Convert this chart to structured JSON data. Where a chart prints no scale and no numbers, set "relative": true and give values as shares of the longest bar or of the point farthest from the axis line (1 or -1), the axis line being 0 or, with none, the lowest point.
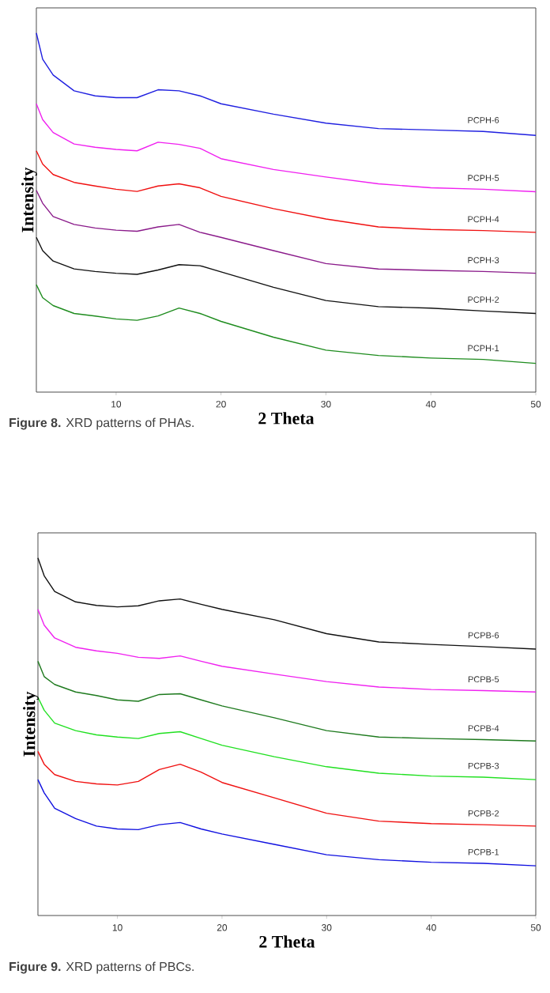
{
  "chart_data": [
    {
      "type": "line",
      "relative": true,
      "xlabel": "2 Theta",
      "ylabel": "Intensity",
      "xlim": [
        2.4,
        50
      ],
      "xticks": [
        10,
        20,
        30,
        40,
        50
      ],
      "x": [
        2.4,
        3,
        4,
        6,
        8,
        10,
        12,
        14,
        16,
        18,
        20,
        25,
        30,
        35,
        40,
        45,
        50
      ],
      "series": [
        {
          "name": "PCPH-6",
          "color": "#1f1fe0",
          "values": [
            1.0,
            0.927,
            0.883,
            0.839,
            0.825,
            0.82,
            0.82,
            0.842,
            0.839,
            0.825,
            0.803,
            0.774,
            0.749,
            0.734,
            0.73,
            0.726,
            0.715
          ]
        },
        {
          "name": "PCPH-5",
          "color": "#f020f0",
          "values": [
            0.803,
            0.759,
            0.723,
            0.691,
            0.682,
            0.676,
            0.672,
            0.696,
            0.69,
            0.679,
            0.65,
            0.62,
            0.599,
            0.58,
            0.569,
            0.565,
            0.558
          ]
        },
        {
          "name": "PCPH-4",
          "color": "#f01010",
          "values": [
            0.672,
            0.635,
            0.606,
            0.584,
            0.574,
            0.565,
            0.559,
            0.574,
            0.58,
            0.569,
            0.545,
            0.511,
            0.482,
            0.46,
            0.453,
            0.45,
            0.445
          ]
        },
        {
          "name": "PCPH-3",
          "color": "#8a1a8a",
          "values": [
            0.562,
            0.526,
            0.489,
            0.467,
            0.457,
            0.451,
            0.448,
            0.46,
            0.467,
            0.445,
            0.431,
            0.394,
            0.358,
            0.343,
            0.339,
            0.336,
            0.331
          ]
        },
        {
          "name": "PCPH-2",
          "color": "#101010",
          "values": [
            0.431,
            0.394,
            0.365,
            0.343,
            0.336,
            0.331,
            0.328,
            0.34,
            0.355,
            0.352,
            0.335,
            0.292,
            0.255,
            0.238,
            0.234,
            0.226,
            0.219
          ]
        },
        {
          "name": "PCPH-1",
          "color": "#1e8c1e",
          "values": [
            0.299,
            0.263,
            0.241,
            0.219,
            0.212,
            0.204,
            0.2,
            0.212,
            0.234,
            0.219,
            0.197,
            0.153,
            0.117,
            0.102,
            0.095,
            0.091,
            0.08
          ]
        }
      ],
      "annotations": [
        "**Figure 8.** XRD patterns of PHAs."
      ]
    },
    {
      "type": "line",
      "relative": true,
      "xlabel": "2 Theta",
      "ylabel": "Intensity",
      "xlim": [
        2.4,
        50
      ],
      "xticks": [
        10,
        20,
        30,
        40,
        50
      ],
      "x": [
        2.4,
        3,
        4,
        6,
        8,
        10,
        12,
        14,
        16,
        18,
        20,
        25,
        30,
        35,
        40,
        45,
        50
      ],
      "series": [
        {
          "name": "PCPB-6",
          "color": "#101010",
          "values": [
            1.0,
            0.95,
            0.906,
            0.877,
            0.867,
            0.863,
            0.866,
            0.88,
            0.885,
            0.87,
            0.856,
            0.827,
            0.788,
            0.765,
            0.758,
            0.752,
            0.745
          ]
        },
        {
          "name": "PCPB-5",
          "color": "#f020f0",
          "values": [
            0.856,
            0.812,
            0.776,
            0.75,
            0.74,
            0.733,
            0.722,
            0.719,
            0.726,
            0.711,
            0.697,
            0.675,
            0.654,
            0.639,
            0.632,
            0.629,
            0.625
          ]
        },
        {
          "name": "PCPB-4",
          "color": "#1e7a1e",
          "values": [
            0.711,
            0.668,
            0.646,
            0.625,
            0.615,
            0.603,
            0.599,
            0.618,
            0.62,
            0.603,
            0.586,
            0.553,
            0.517,
            0.499,
            0.495,
            0.492,
            0.488
          ]
        },
        {
          "name": "PCPB-3",
          "color": "#20e020",
          "values": [
            0.61,
            0.574,
            0.538,
            0.517,
            0.505,
            0.499,
            0.495,
            0.509,
            0.514,
            0.495,
            0.476,
            0.444,
            0.416,
            0.398,
            0.39,
            0.387,
            0.38
          ]
        },
        {
          "name": "PCPB-2",
          "color": "#f01010",
          "values": [
            0.459,
            0.423,
            0.394,
            0.375,
            0.368,
            0.365,
            0.375,
            0.408,
            0.423,
            0.401,
            0.372,
            0.329,
            0.286,
            0.264,
            0.257,
            0.254,
            0.25
          ]
        },
        {
          "name": "PCPB-1",
          "color": "#1010e0",
          "values": [
            0.38,
            0.343,
            0.3,
            0.271,
            0.25,
            0.242,
            0.24,
            0.254,
            0.26,
            0.242,
            0.228,
            0.199,
            0.17,
            0.156,
            0.149,
            0.146,
            0.139
          ]
        }
      ],
      "annotations": [
        "**Figure 9.** XRD patterns of PBCs."
      ]
    }
  ]
}
